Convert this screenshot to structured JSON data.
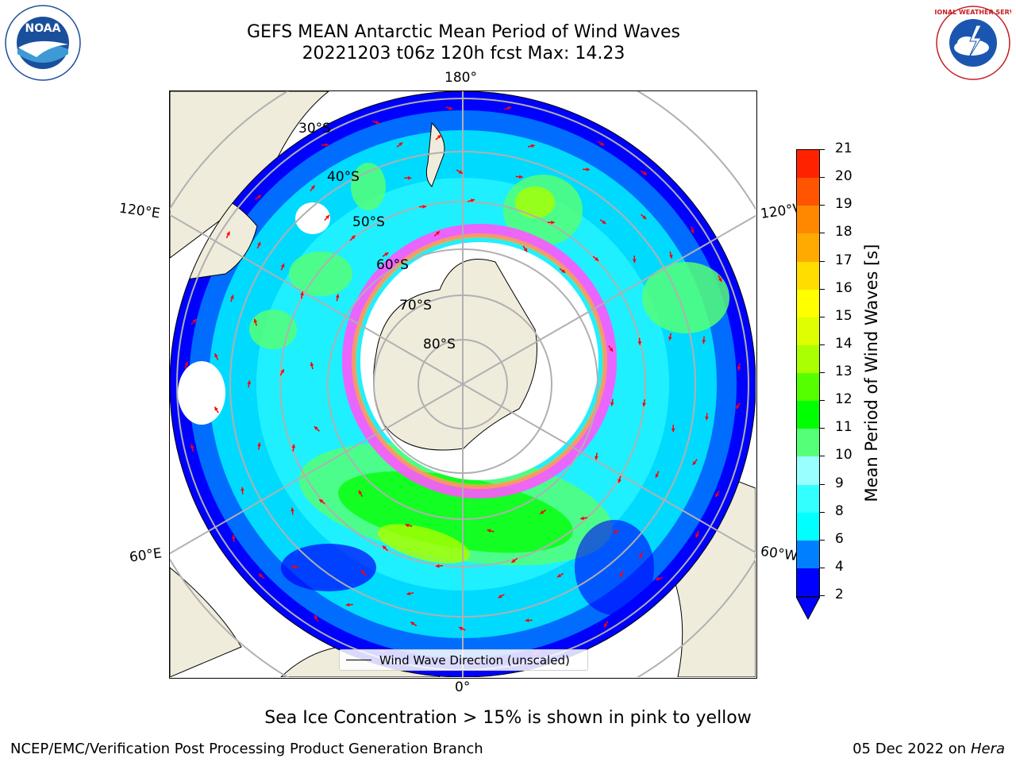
{
  "title": {
    "line1": "GEFS MEAN Antarctic Mean Period of Wind Waves",
    "line2": "20221203 t06z 120h fcst   Max: 14.23"
  },
  "logos": {
    "noaa_text": "NOAA",
    "nws_text": "NATIONAL WEATHER SERVICE"
  },
  "map": {
    "projection": "south-polar-stereographic",
    "longitude_labels": {
      "top": "180°",
      "bottom": "0°",
      "upper_left": "120°E",
      "upper_right": "120°W",
      "lower_left": "60°E",
      "lower_right": "60°W"
    },
    "latitude_labels": [
      "30°S",
      "40°S",
      "50°S",
      "60°S",
      "70°S",
      "80°S"
    ],
    "land_color": "#efecdc",
    "ice_color": "#ffffff",
    "arrow_color": "#ff0000"
  },
  "legend": {
    "label": "Wind Wave Direction (unscaled)"
  },
  "colorbar": {
    "title": "Mean Period of Wind Waves [s]",
    "ticks": [
      "2",
      "4",
      "6",
      "8",
      "9",
      "10",
      "11",
      "12",
      "13",
      "14",
      "15",
      "16",
      "17",
      "18",
      "19",
      "20",
      "21"
    ],
    "colors": [
      "#0000ff",
      "#0080ff",
      "#00ffff",
      "#33ffff",
      "#99ffff",
      "#55ff77",
      "#00ff00",
      "#55ff00",
      "#aaff00",
      "#ddff00",
      "#ffff00",
      "#ffdd00",
      "#ffaa00",
      "#ff8800",
      "#ff5500",
      "#ff2200",
      "#ff0000"
    ]
  },
  "notes": {
    "ice": "Sea Ice Concentration > 15% is shown in pink to yellow"
  },
  "footer": {
    "left": "NCEP/EMC/Verification Post Processing Product Generation Branch",
    "right_date": "05 Dec 2022 on",
    "right_machine": "Hera"
  }
}
